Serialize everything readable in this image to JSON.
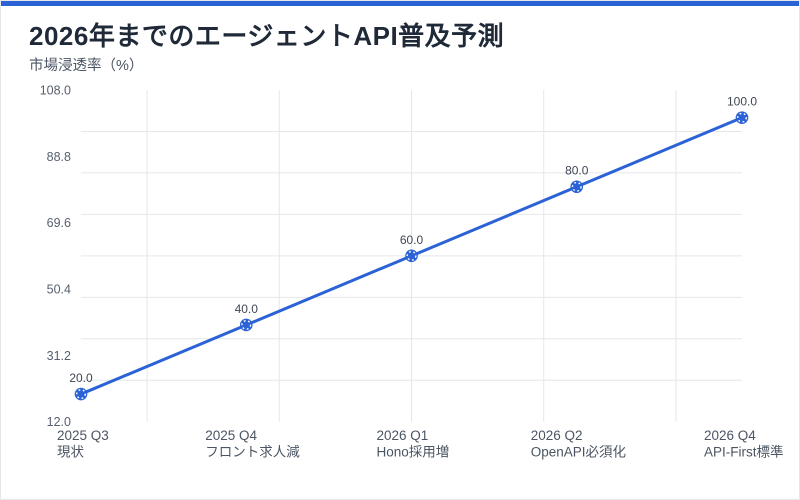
{
  "page": {
    "title": "2026年までのエージェントAPI普及予測",
    "subtitle": "市場浸透率（%）"
  },
  "colors": {
    "accent": "#2b62d6",
    "title_text": "#1f2937",
    "subtitle_text": "#4b5563",
    "axis_tick_text": "#57606e",
    "value_label_text": "#3f4754",
    "gridline": "#e4e7ea",
    "card_border": "#e5e7eb",
    "background": "#ffffff",
    "point_fill": "#2b62d6",
    "point_ring": "#ffffff",
    "line": "#2b62d6"
  },
  "chart_data": {
    "type": "line",
    "title": "2026年までのエージェントAPI普及予測",
    "ylabel": "市場浸透率（%）",
    "xlabel": "",
    "categories": [
      {
        "quarter": "2025 Q3",
        "note": "現状"
      },
      {
        "quarter": "2025 Q4",
        "note": "フロント求人減"
      },
      {
        "quarter": "2026 Q1",
        "note": "Hono採用増"
      },
      {
        "quarter": "2026 Q2",
        "note": "OpenAPI必須化"
      },
      {
        "quarter": "2026 Q4",
        "note": "API-First標準"
      }
    ],
    "values": [
      20.0,
      40.0,
      60.0,
      80.0,
      100.0
    ],
    "point_labels": [
      "20.0",
      "40.0",
      "60.0",
      "80.0",
      "100.0"
    ],
    "y_ticks": [
      "12.0",
      "31.2",
      "50.4",
      "69.6",
      "88.8",
      "108.0"
    ],
    "ylim": [
      12,
      108
    ],
    "grid": true,
    "legend": false
  }
}
